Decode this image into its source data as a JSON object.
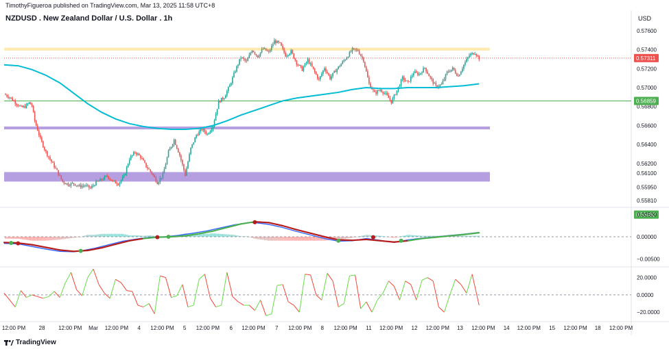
{
  "header": {
    "published": "TimothyFigueroa published on TradingView.com, Mar 13, 2025 11:58 UTC+8",
    "symbol_title": "NZDUSD . New Zealand Dollar / U.S. Dollar . 1h",
    "currency": "USD"
  },
  "footer": {
    "brand": "TradingView",
    "logo_icon": "tradingview-logo-icon"
  },
  "colors": {
    "up": "#26a69a",
    "down": "#ef5350",
    "ma": "#00bcd4",
    "zone": "#9c7fd6",
    "resistance": "#ffe9a8",
    "support_line": "#4caf50",
    "macd": "#2962ff",
    "signal_up": "#4caf50",
    "signal_down": "#b71c1c",
    "rsi_up": "#66dd44",
    "rsi_down": "#f44336"
  },
  "chart_data": [
    {
      "type": "candlestick",
      "title": "NZDUSD . New Zealand Dollar / U.S. Dollar . 1h",
      "y_ticks": [
        "0.57600",
        "0.57400",
        "0.57200",
        "0.57000",
        "0.56800",
        "0.56600",
        "0.56400",
        "0.56200",
        "0.56100",
        "0.55950",
        "0.55810"
      ],
      "y_tick_values": [
        0.576,
        0.574,
        0.572,
        0.57,
        0.568,
        0.566,
        0.564,
        0.562,
        0.561,
        0.5595,
        0.5581
      ],
      "price_labels": [
        {
          "text": "0.57311",
          "value": 0.57311,
          "color": "#ef5350"
        },
        {
          "text": "0.56859",
          "value": 0.56859,
          "color": "#4caf50"
        },
        {
          "text": "0.55662",
          "value": 0.55662,
          "color": "#4caf50"
        }
      ],
      "zones": [
        {
          "from": 0.5739,
          "to": 0.5742,
          "color": "#ffe9a8"
        },
        {
          "from": 0.5656,
          "to": 0.5659,
          "color": "#9c7fd6"
        },
        {
          "from": 0.5601,
          "to": 0.5611,
          "color": "#9c7fd6"
        }
      ],
      "horizontal_lines": [
        {
          "value": 0.56859,
          "color": "#4caf50"
        },
        {
          "value": 0.57311,
          "color": "#ef5350"
        }
      ],
      "price_path": [
        [
          0,
          0.5693
        ],
        [
          4,
          0.569
        ],
        [
          6,
          0.5687
        ],
        [
          9,
          0.5683
        ],
        [
          12,
          0.5679
        ],
        [
          15,
          0.568
        ],
        [
          18,
          0.5684
        ],
        [
          20,
          0.5681
        ],
        [
          22,
          0.5665
        ],
        [
          26,
          0.5646
        ],
        [
          30,
          0.5632
        ],
        [
          34,
          0.5622
        ],
        [
          38,
          0.5612
        ],
        [
          42,
          0.5601
        ],
        [
          46,
          0.5598
        ],
        [
          50,
          0.5599
        ],
        [
          54,
          0.5596
        ],
        [
          58,
          0.5597
        ],
        [
          62,
          0.5594
        ],
        [
          66,
          0.56
        ],
        [
          70,
          0.5603
        ],
        [
          74,
          0.5607
        ],
        [
          78,
          0.5601
        ],
        [
          82,
          0.5599
        ],
        [
          86,
          0.5606
        ],
        [
          90,
          0.5625
        ],
        [
          94,
          0.5632
        ],
        [
          98,
          0.5627
        ],
        [
          102,
          0.5617
        ],
        [
          106,
          0.561
        ],
        [
          110,
          0.56
        ],
        [
          114,
          0.5608
        ],
        [
          118,
          0.5632
        ],
        [
          122,
          0.5645
        ],
        [
          126,
          0.5629
        ],
        [
          130,
          0.5608
        ],
        [
          134,
          0.5636
        ],
        [
          138,
          0.565
        ],
        [
          142,
          0.5656
        ],
        [
          146,
          0.5651
        ],
        [
          150,
          0.566
        ],
        [
          154,
          0.5685
        ],
        [
          158,
          0.569
        ],
        [
          162,
          0.5702
        ],
        [
          166,
          0.5718
        ],
        [
          170,
          0.5732
        ],
        [
          174,
          0.5727
        ],
        [
          178,
          0.574
        ],
        [
          182,
          0.5733
        ],
        [
          186,
          0.5741
        ],
        [
          190,
          0.5737
        ],
        [
          194,
          0.5749
        ],
        [
          198,
          0.5746
        ],
        [
          202,
          0.5734
        ],
        [
          206,
          0.5738
        ],
        [
          210,
          0.5726
        ],
        [
          214,
          0.5719
        ],
        [
          218,
          0.5729
        ],
        [
          222,
          0.5719
        ],
        [
          226,
          0.5708
        ],
        [
          230,
          0.5721
        ],
        [
          234,
          0.571
        ],
        [
          238,
          0.5718
        ],
        [
          242,
          0.5725
        ],
        [
          246,
          0.5732
        ],
        [
          250,
          0.574
        ],
        [
          254,
          0.5739
        ],
        [
          258,
          0.5729
        ],
        [
          262,
          0.5704
        ],
        [
          266,
          0.5694
        ],
        [
          270,
          0.5698
        ],
        [
          274,
          0.5693
        ],
        [
          278,
          0.5685
        ],
        [
          282,
          0.5697
        ],
        [
          286,
          0.571
        ],
        [
          290,
          0.5705
        ],
        [
          294,
          0.5716
        ],
        [
          298,
          0.5714
        ],
        [
          302,
          0.5721
        ],
        [
          306,
          0.571
        ],
        [
          310,
          0.5701
        ],
        [
          314,
          0.5703
        ],
        [
          318,
          0.5716
        ],
        [
          322,
          0.572
        ],
        [
          326,
          0.5712
        ],
        [
          330,
          0.5724
        ],
        [
          334,
          0.5734
        ],
        [
          338,
          0.5737
        ],
        [
          341,
          0.5731
        ]
      ],
      "ma_path": [
        [
          0,
          0.5724
        ],
        [
          10,
          0.5723
        ],
        [
          20,
          0.5719
        ],
        [
          30,
          0.5713
        ],
        [
          40,
          0.5705
        ],
        [
          50,
          0.5694
        ],
        [
          60,
          0.5683
        ],
        [
          70,
          0.5674
        ],
        [
          80,
          0.5667
        ],
        [
          90,
          0.5662
        ],
        [
          100,
          0.5659
        ],
        [
          110,
          0.5657
        ],
        [
          120,
          0.5656
        ],
        [
          130,
          0.5656
        ],
        [
          140,
          0.5657
        ],
        [
          150,
          0.566
        ],
        [
          160,
          0.5665
        ],
        [
          170,
          0.5671
        ],
        [
          180,
          0.5676
        ],
        [
          190,
          0.5681
        ],
        [
          200,
          0.5686
        ],
        [
          210,
          0.5689
        ],
        [
          220,
          0.5691
        ],
        [
          230,
          0.5693
        ],
        [
          240,
          0.5695
        ],
        [
          250,
          0.5698
        ],
        [
          260,
          0.57
        ],
        [
          270,
          0.5699
        ],
        [
          280,
          0.5699
        ],
        [
          290,
          0.57
        ],
        [
          300,
          0.57
        ],
        [
          310,
          0.57
        ],
        [
          320,
          0.5701
        ],
        [
          330,
          0.5702
        ],
        [
          341,
          0.5704
        ]
      ]
    },
    {
      "type": "line",
      "name": "MACD",
      "y_ticks": [
        "0.00500",
        "0.00000",
        "−0.00500"
      ],
      "y_tick_values": [
        0.005,
        0.0,
        -0.005
      ],
      "ylim": [
        -0.0062,
        0.0062
      ],
      "macd_path": [
        [
          0,
          -0.0015
        ],
        [
          10,
          -0.0016
        ],
        [
          20,
          -0.0022
        ],
        [
          30,
          -0.0028
        ],
        [
          40,
          -0.0033
        ],
        [
          50,
          -0.0034
        ],
        [
          55,
          -0.0032
        ],
        [
          65,
          -0.0026
        ],
        [
          75,
          -0.0018
        ],
        [
          85,
          -0.001
        ],
        [
          95,
          -0.0005
        ],
        [
          105,
          -0.0001
        ],
        [
          115,
          0.0
        ],
        [
          125,
          0.0003
        ],
        [
          135,
          0.0008
        ],
        [
          145,
          0.0013
        ],
        [
          155,
          0.002
        ],
        [
          165,
          0.0027
        ],
        [
          175,
          0.0032
        ],
        [
          180,
          0.0032
        ],
        [
          190,
          0.0028
        ],
        [
          200,
          0.0021
        ],
        [
          210,
          0.0012
        ],
        [
          220,
          0.0004
        ],
        [
          230,
          -0.0004
        ],
        [
          240,
          -0.001
        ],
        [
          250,
          -0.0009
        ],
        [
          260,
          -0.0004
        ],
        [
          270,
          -0.0008
        ],
        [
          280,
          -0.0013
        ],
        [
          290,
          -0.0007
        ],
        [
          300,
          -0.0003
        ],
        [
          310,
          0.0
        ],
        [
          320,
          0.0003
        ],
        [
          330,
          0.0006
        ],
        [
          341,
          0.001
        ]
      ],
      "signal_path": [
        [
          0,
          -0.0013
        ],
        [
          10,
          -0.0014
        ],
        [
          20,
          -0.0018
        ],
        [
          30,
          -0.0024
        ],
        [
          40,
          -0.003
        ],
        [
          50,
          -0.0033
        ],
        [
          60,
          -0.0031
        ],
        [
          70,
          -0.0025
        ],
        [
          80,
          -0.0017
        ],
        [
          90,
          -0.0009
        ],
        [
          100,
          -0.0004
        ],
        [
          110,
          -0.0001
        ],
        [
          120,
          0.0
        ],
        [
          130,
          0.0002
        ],
        [
          140,
          0.0007
        ],
        [
          150,
          0.0013
        ],
        [
          160,
          0.0021
        ],
        [
          170,
          0.0029
        ],
        [
          180,
          0.0034
        ],
        [
          190,
          0.0032
        ],
        [
          200,
          0.0025
        ],
        [
          210,
          0.0016
        ],
        [
          220,
          0.0008
        ],
        [
          230,
          0.0
        ],
        [
          240,
          -0.0007
        ],
        [
          250,
          -0.0008
        ],
        [
          260,
          -0.0006
        ],
        [
          270,
          -0.0009
        ],
        [
          280,
          -0.0012
        ],
        [
          290,
          -0.0009
        ],
        [
          300,
          -0.0004
        ],
        [
          310,
          -0.0001
        ],
        [
          320,
          0.0002
        ],
        [
          330,
          0.0005
        ],
        [
          341,
          0.0009
        ]
      ],
      "signal_up_ranges": [
        [
          100,
          175
        ],
        [
          290,
          341
        ]
      ],
      "cross_markers": [
        {
          "x": 5,
          "value": -0.0014,
          "color": "#4caf50"
        },
        {
          "x": 10,
          "value": -0.0015,
          "color": "#b71c1c"
        },
        {
          "x": 55,
          "value": -0.0032,
          "color": "#4caf50"
        },
        {
          "x": 110,
          "value": -0.0001,
          "color": "#b71c1c"
        },
        {
          "x": 118,
          "value": 0.0,
          "color": "#4caf50"
        },
        {
          "x": 180,
          "value": 0.0033,
          "color": "#b71c1c"
        },
        {
          "x": 240,
          "value": -0.0009,
          "color": "#4caf50"
        },
        {
          "x": 265,
          "value": -0.0001,
          "color": "#b71c1c"
        },
        {
          "x": 285,
          "value": -0.0009,
          "color": "#4caf50"
        }
      ]
    },
    {
      "type": "line",
      "name": "Oscillator",
      "y_ticks": [
        "20.0000",
        "0.0000",
        "−20.0000"
      ],
      "y_tick_values": [
        20,
        0,
        -20
      ],
      "ylim": [
        -27,
        30
      ],
      "path": [
        [
          0,
          2
        ],
        [
          4,
          -6
        ],
        [
          8,
          -14
        ],
        [
          12,
          5
        ],
        [
          16,
          -3
        ],
        [
          20,
          0
        ],
        [
          24,
          -2
        ],
        [
          28,
          -4
        ],
        [
          32,
          -2
        ],
        [
          36,
          4
        ],
        [
          40,
          -3
        ],
        [
          44,
          14
        ],
        [
          48,
          26
        ],
        [
          52,
          6
        ],
        [
          56,
          -1
        ],
        [
          60,
          20
        ],
        [
          64,
          30
        ],
        [
          68,
          12
        ],
        [
          72,
          2
        ],
        [
          76,
          -4
        ],
        [
          80,
          18
        ],
        [
          84,
          14
        ],
        [
          88,
          5
        ],
        [
          92,
          4
        ],
        [
          96,
          -12
        ],
        [
          100,
          -14
        ],
        [
          104,
          -10
        ],
        [
          108,
          -22
        ],
        [
          112,
          22
        ],
        [
          116,
          20
        ],
        [
          120,
          -3
        ],
        [
          124,
          -1
        ],
        [
          128,
          12
        ],
        [
          132,
          -14
        ],
        [
          136,
          -12
        ],
        [
          140,
          18
        ],
        [
          144,
          24
        ],
        [
          148,
          -4
        ],
        [
          152,
          -14
        ],
        [
          156,
          -12
        ],
        [
          160,
          26
        ],
        [
          164,
          -2
        ],
        [
          168,
          -8
        ],
        [
          172,
          -12
        ],
        [
          176,
          -12
        ],
        [
          180,
          -18
        ],
        [
          184,
          -6
        ],
        [
          188,
          -24
        ],
        [
          192,
          -22
        ],
        [
          196,
          11
        ],
        [
          200,
          12
        ],
        [
          204,
          -8
        ],
        [
          208,
          -12
        ],
        [
          212,
          -20
        ],
        [
          216,
          24
        ],
        [
          220,
          23
        ],
        [
          224,
          0
        ],
        [
          228,
          -6
        ],
        [
          232,
          25
        ],
        [
          236,
          16
        ],
        [
          240,
          -14
        ],
        [
          244,
          -10
        ],
        [
          248,
          22
        ],
        [
          252,
          23
        ],
        [
          256,
          -16
        ],
        [
          260,
          -8
        ],
        [
          264,
          -20
        ],
        [
          268,
          -6
        ],
        [
          272,
          2
        ],
        [
          276,
          16
        ],
        [
          280,
          10
        ],
        [
          284,
          -6
        ],
        [
          288,
          16
        ],
        [
          292,
          12
        ],
        [
          296,
          -6
        ],
        [
          300,
          17
        ],
        [
          304,
          20
        ],
        [
          308,
          16
        ],
        [
          312,
          -14
        ],
        [
          316,
          -20
        ],
        [
          320,
          0
        ],
        [
          324,
          18
        ],
        [
          328,
          12
        ],
        [
          332,
          2
        ],
        [
          336,
          24
        ],
        [
          341,
          -12
        ]
      ]
    }
  ],
  "x_axis": {
    "labels": [
      "12:00 PM",
      "28",
      "12:00 PM",
      "Mar",
      "12:00 PM",
      "4",
      "12:00 PM",
      "5",
      "12:00 PM",
      "6",
      "12:00 PM",
      "7",
      "12:00 PM",
      "8",
      "12:00 PM",
      "11",
      "12:00 PM",
      "12",
      "12:00 PM",
      "13",
      "12:00 PM",
      "14",
      "12:00 PM",
      "15",
      "12:00 PM",
      "18",
      "12:00 PM"
    ],
    "label_x_positions_units": [
      0,
      34,
      68,
      96,
      124,
      151,
      179,
      206,
      234,
      262,
      289,
      317,
      345,
      372,
      400,
      428,
      455,
      483,
      511,
      538,
      566,
      594,
      621,
      649,
      677,
      704,
      732
    ]
  }
}
